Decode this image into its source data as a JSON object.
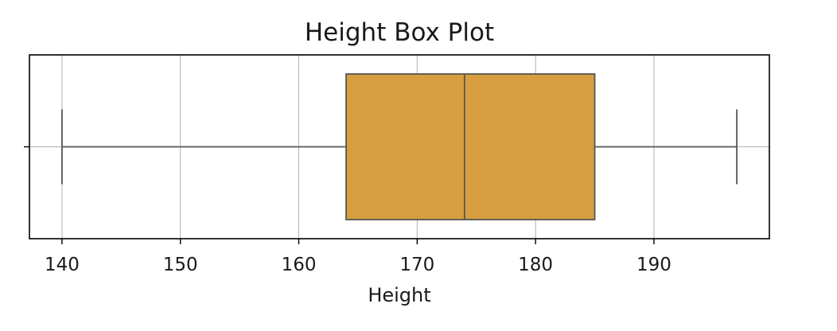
{
  "chart_data": {
    "type": "box",
    "title": "Height Box Plot",
    "xlabel": "Height",
    "ylabel": "",
    "xlim": [
      137.25,
      199.75
    ],
    "xticks": [
      140,
      150,
      160,
      170,
      180,
      190
    ],
    "grid": true,
    "orientation": "horizontal",
    "series": [
      {
        "whisker_low": 140,
        "q1": 164,
        "median": 174,
        "q3": 185,
        "whisker_high": 197
      }
    ],
    "box_color": "#d69e3f",
    "line_color": "#555555"
  }
}
